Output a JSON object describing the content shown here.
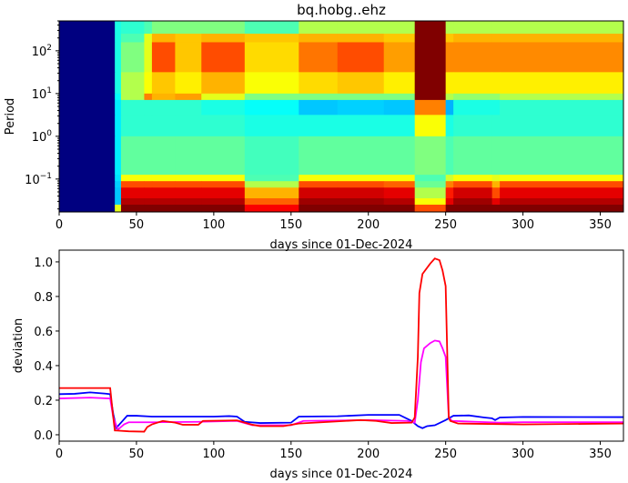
{
  "chart_data": [
    {
      "type": "heatmap",
      "title": "bq.hobg..ehz",
      "xlabel": "days since 01-Dec-2024",
      "ylabel": "Period",
      "xlim": [
        0,
        365
      ],
      "ylim": [
        0.017,
        500
      ],
      "yscale": "log",
      "colormap": "jet",
      "xticks": [
        0,
        50,
        100,
        150,
        200,
        250,
        300,
        350
      ],
      "yticks": [
        {
          "exp": -1,
          "label": "10",
          "sup": "−1"
        },
        {
          "exp": 0,
          "label": "10",
          "sup": "0"
        },
        {
          "exp": 1,
          "label": "10",
          "sup": "1"
        },
        {
          "exp": 2,
          "label": "10",
          "sup": "2"
        }
      ],
      "time_edges": [
        0,
        36,
        40,
        55,
        60,
        75,
        92,
        120,
        155,
        180,
        210,
        230,
        250,
        255,
        280,
        285,
        365
      ],
      "log10_period_edges": [
        2.7,
        2.4,
        2.2,
        1.5,
        1.0,
        0.85,
        0.5,
        0.0,
        -0.9,
        -1.05,
        -1.2,
        -1.45,
        -1.6,
        -1.77
      ],
      "values": [
        [
          0,
          0.4,
          0.42,
          0.45,
          0.5,
          0.5,
          0.5,
          0.45,
          0.55,
          0.55,
          0.55,
          1,
          0.55,
          0.55,
          0.55,
          0.55
        ],
        [
          0,
          0.4,
          0.45,
          0.6,
          0.7,
          0.68,
          0.7,
          0.68,
          0.7,
          0.7,
          0.68,
          1,
          0.68,
          0.7,
          0.7,
          0.7
        ],
        [
          0,
          0.4,
          0.5,
          0.6,
          0.8,
          0.68,
          0.8,
          0.66,
          0.76,
          0.8,
          0.72,
          1,
          0.74,
          0.74,
          0.74,
          0.74
        ],
        [
          0,
          0.4,
          0.55,
          0.62,
          0.68,
          0.64,
          0.7,
          0.62,
          0.66,
          0.68,
          0.64,
          1,
          0.64,
          0.64,
          0.64,
          0.64
        ],
        [
          0,
          0.38,
          0.55,
          0.75,
          0.7,
          0.72,
          0.6,
          0.5,
          0.5,
          0.5,
          0.5,
          1,
          0.55,
          0.52,
          0.52,
          0.55
        ],
        [
          0,
          0.36,
          0.42,
          0.42,
          0.42,
          0.42,
          0.4,
          0.38,
          0.32,
          0.33,
          0.32,
          0.75,
          0.3,
          0.4,
          0.4,
          0.42
        ],
        [
          0,
          0.36,
          0.42,
          0.42,
          0.42,
          0.42,
          0.42,
          0.4,
          0.4,
          0.4,
          0.4,
          0.62,
          0.4,
          0.42,
          0.42,
          0.42
        ],
        [
          0,
          0.36,
          0.47,
          0.47,
          0.47,
          0.47,
          0.47,
          0.44,
          0.47,
          0.47,
          0.47,
          0.5,
          0.45,
          0.47,
          0.47,
          0.47
        ],
        [
          0,
          0.35,
          0.62,
          0.62,
          0.62,
          0.62,
          0.62,
          0.45,
          0.62,
          0.62,
          0.62,
          0.45,
          0.58,
          0.62,
          0.6,
          0.62
        ],
        [
          0,
          0.33,
          0.8,
          0.8,
          0.8,
          0.8,
          0.8,
          0.55,
          0.8,
          0.8,
          0.78,
          0.48,
          0.75,
          0.8,
          0.7,
          0.8
        ],
        [
          0,
          0.32,
          0.9,
          0.9,
          0.9,
          0.9,
          0.9,
          0.7,
          0.92,
          0.92,
          0.9,
          0.55,
          0.85,
          0.92,
          0.8,
          0.9
        ],
        [
          0,
          0.32,
          0.95,
          0.95,
          0.95,
          0.95,
          0.95,
          0.78,
          0.97,
          0.97,
          0.95,
          0.62,
          0.9,
          0.97,
          0.9,
          0.95
        ],
        [
          0,
          0.6,
          1,
          1,
          1,
          1,
          1,
          0.88,
          1,
          1,
          1,
          0.8,
          1,
          1,
          1,
          1
        ]
      ]
    },
    {
      "type": "line",
      "xlabel": "days since 01-Dec-2024",
      "ylabel": "deviation",
      "xlim": [
        0,
        365
      ],
      "ylim": [
        -0.037,
        1.068
      ],
      "xticks": [
        0,
        50,
        100,
        150,
        200,
        250,
        300,
        350
      ],
      "yticks": [
        "0.0",
        "0.2",
        "0.4",
        "0.6",
        "0.8",
        "1.0"
      ],
      "series": [
        {
          "color": "#0000ff",
          "points": [
            [
              0,
              0.235
            ],
            [
              10,
              0.237
            ],
            [
              20,
              0.245
            ],
            [
              30,
              0.238
            ],
            [
              33,
              0.235
            ],
            [
              35,
              0.12
            ],
            [
              37,
              0.04
            ],
            [
              40,
              0.07
            ],
            [
              44,
              0.11
            ],
            [
              50,
              0.11
            ],
            [
              60,
              0.105
            ],
            [
              80,
              0.105
            ],
            [
              100,
              0.105
            ],
            [
              110,
              0.108
            ],
            [
              115,
              0.105
            ],
            [
              120,
              0.075
            ],
            [
              130,
              0.068
            ],
            [
              150,
              0.07
            ],
            [
              155,
              0.105
            ],
            [
              180,
              0.107
            ],
            [
              200,
              0.115
            ],
            [
              220,
              0.115
            ],
            [
              228,
              0.08
            ],
            [
              232,
              0.05
            ],
            [
              235,
              0.038
            ],
            [
              238,
              0.05
            ],
            [
              243,
              0.055
            ],
            [
              250,
              0.085
            ],
            [
              255,
              0.11
            ],
            [
              265,
              0.112
            ],
            [
              275,
              0.1
            ],
            [
              280,
              0.095
            ],
            [
              282,
              0.085
            ],
            [
              285,
              0.1
            ],
            [
              300,
              0.103
            ],
            [
              365,
              0.102
            ]
          ]
        },
        {
          "color": "#ff00ff",
          "points": [
            [
              0,
              0.21
            ],
            [
              20,
              0.215
            ],
            [
              33,
              0.21
            ],
            [
              35,
              0.1
            ],
            [
              38,
              0.03
            ],
            [
              42,
              0.06
            ],
            [
              45,
              0.072
            ],
            [
              60,
              0.072
            ],
            [
              90,
              0.075
            ],
            [
              115,
              0.08
            ],
            [
              125,
              0.055
            ],
            [
              150,
              0.055
            ],
            [
              158,
              0.08
            ],
            [
              200,
              0.085
            ],
            [
              225,
              0.08
            ],
            [
              230,
              0.07
            ],
            [
              232,
              0.2
            ],
            [
              234,
              0.42
            ],
            [
              236,
              0.5
            ],
            [
              240,
              0.53
            ],
            [
              243,
              0.545
            ],
            [
              246,
              0.54
            ],
            [
              248,
              0.5
            ],
            [
              250,
              0.45
            ],
            [
              252,
              0.1
            ],
            [
              254,
              0.08
            ],
            [
              270,
              0.075
            ],
            [
              285,
              0.07
            ],
            [
              300,
              0.073
            ],
            [
              365,
              0.073
            ]
          ]
        },
        {
          "color": "#ff0000",
          "points": [
            [
              0,
              0.27
            ],
            [
              33,
              0.27
            ],
            [
              35,
              0.1
            ],
            [
              36,
              0.025
            ],
            [
              45,
              0.02
            ],
            [
              55,
              0.018
            ],
            [
              57,
              0.045
            ],
            [
              60,
              0.06
            ],
            [
              67,
              0.08
            ],
            [
              75,
              0.07
            ],
            [
              80,
              0.058
            ],
            [
              90,
              0.058
            ],
            [
              93,
              0.08
            ],
            [
              115,
              0.083
            ],
            [
              125,
              0.058
            ],
            [
              130,
              0.05
            ],
            [
              145,
              0.05
            ],
            [
              155,
              0.065
            ],
            [
              175,
              0.075
            ],
            [
              195,
              0.085
            ],
            [
              205,
              0.08
            ],
            [
              215,
              0.068
            ],
            [
              228,
              0.07
            ],
            [
              230,
              0.1
            ],
            [
              232,
              0.45
            ],
            [
              233,
              0.82
            ],
            [
              235,
              0.93
            ],
            [
              240,
              0.99
            ],
            [
              243,
              1.02
            ],
            [
              246,
              1.01
            ],
            [
              248,
              0.95
            ],
            [
              250,
              0.86
            ],
            [
              252,
              0.1
            ],
            [
              253,
              0.08
            ],
            [
              258,
              0.065
            ],
            [
              300,
              0.06
            ],
            [
              365,
              0.065
            ]
          ]
        }
      ]
    }
  ]
}
